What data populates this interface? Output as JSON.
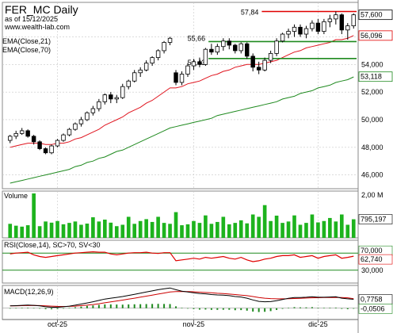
{
  "header": {
    "title": "FER_MC Daily",
    "asof": "as of 15/12/2025",
    "site": "www.wealth-lab.com"
  },
  "legend": {
    "ema21": "EMA(Close,21)",
    "ema70": "EMA(Close,70)"
  },
  "colors": {
    "up": "#2e8b2e",
    "down": "#000000",
    "ema21": "#e0141e",
    "ema70": "#1f8a1f",
    "grid": "#c8c8c8",
    "rsi": "#e00000",
    "macd": "#000000",
    "signal": "#cc0000",
    "vol": "#1db31d"
  },
  "chart_data": [
    {
      "type": "candlestick",
      "name": "price",
      "title": "FER_MC Daily",
      "ylim": [
        45.0,
        58.5
      ],
      "yticks": [
        "46,000",
        "48,000",
        "50,000",
        "52,000",
        "54,000",
        "56,000"
      ],
      "xticks": [
        {
          "i": 8,
          "label": "oct-25"
        },
        {
          "i": 31,
          "label": "nov-25"
        },
        {
          "i": 52,
          "label": "dic-25"
        }
      ],
      "ohlc": [
        [
          48.5,
          48.9,
          48.3,
          48.8
        ],
        [
          48.8,
          49.2,
          48.6,
          49.0
        ],
        [
          49.0,
          49.4,
          48.9,
          49.2
        ],
        [
          49.2,
          49.3,
          48.7,
          48.8
        ],
        [
          48.8,
          48.9,
          48.2,
          48.4
        ],
        [
          48.4,
          48.5,
          47.8,
          47.9
        ],
        [
          47.9,
          48.0,
          47.5,
          47.6
        ],
        [
          47.6,
          48.2,
          47.5,
          48.1
        ],
        [
          48.1,
          48.6,
          48.0,
          48.5
        ],
        [
          48.5,
          49.0,
          48.4,
          48.9
        ],
        [
          48.9,
          49.4,
          48.8,
          49.3
        ],
        [
          49.3,
          49.8,
          49.2,
          49.7
        ],
        [
          49.7,
          50.2,
          49.5,
          50.0
        ],
        [
          50.0,
          50.6,
          49.9,
          50.5
        ],
        [
          50.5,
          51.0,
          50.3,
          50.8
        ],
        [
          50.8,
          51.5,
          50.6,
          51.3
        ],
        [
          51.3,
          51.9,
          51.1,
          51.8
        ],
        [
          51.8,
          52.0,
          51.2,
          51.5
        ],
        [
          51.5,
          51.8,
          51.2,
          51.6
        ],
        [
          51.6,
          52.6,
          51.5,
          52.4
        ],
        [
          52.4,
          52.9,
          52.2,
          52.8
        ],
        [
          52.8,
          53.6,
          52.7,
          53.4
        ],
        [
          53.4,
          53.8,
          53.1,
          53.6
        ],
        [
          53.6,
          54.3,
          53.5,
          54.1
        ],
        [
          54.1,
          54.6,
          53.9,
          54.5
        ],
        [
          54.5,
          55.1,
          54.3,
          55.0
        ],
        [
          55.0,
          55.7,
          54.8,
          55.6
        ],
        [
          55.6,
          56.0,
          55.4,
          55.9
        ],
        [
          53.4,
          53.6,
          52.5,
          52.7
        ],
        [
          52.7,
          53.5,
          52.5,
          53.3
        ],
        [
          53.3,
          54.1,
          53.1,
          53.9
        ],
        [
          53.9,
          54.4,
          53.6,
          54.2
        ],
        [
          54.2,
          54.5,
          53.8,
          54.0
        ],
        [
          54.0,
          55.2,
          53.9,
          55.1
        ],
        [
          55.1,
          55.5,
          54.7,
          54.9
        ],
        [
          54.9,
          55.5,
          54.7,
          55.3
        ],
        [
          55.3,
          55.9,
          55.0,
          55.7
        ],
        [
          55.7,
          55.9,
          55.1,
          55.4
        ],
        [
          55.4,
          55.5,
          54.8,
          55.0
        ],
        [
          55.0,
          55.6,
          54.8,
          55.5
        ],
        [
          55.5,
          55.6,
          54.4,
          54.6
        ],
        [
          54.6,
          54.8,
          53.5,
          53.8
        ],
        [
          53.8,
          54.2,
          53.3,
          53.6
        ],
        [
          53.6,
          54.5,
          53.5,
          54.3
        ],
        [
          54.3,
          55.0,
          54.1,
          54.8
        ],
        [
          54.8,
          55.9,
          54.6,
          55.7
        ],
        [
          55.7,
          56.3,
          55.6,
          56.2
        ],
        [
          56.2,
          56.6,
          55.9,
          56.4
        ],
        [
          56.4,
          56.9,
          56.0,
          56.7
        ],
        [
          56.7,
          56.9,
          56.0,
          56.2
        ],
        [
          56.2,
          56.8,
          55.9,
          56.6
        ],
        [
          56.6,
          57.2,
          56.4,
          57.0
        ],
        [
          57.0,
          57.3,
          56.2,
          56.4
        ],
        [
          56.4,
          57.3,
          56.2,
          57.1
        ],
        [
          57.1,
          57.6,
          56.7,
          57.3
        ],
        [
          57.3,
          57.84,
          56.9,
          57.6
        ],
        [
          57.6,
          57.7,
          56.2,
          56.5
        ],
        [
          56.5,
          57.0,
          55.8,
          56.8
        ],
        [
          56.8,
          57.7,
          56.6,
          57.6
        ]
      ],
      "ema21": [
        48.0,
        48.1,
        48.2,
        48.3,
        48.3,
        48.3,
        48.2,
        48.2,
        48.3,
        48.3,
        48.4,
        48.6,
        48.7,
        48.9,
        49.1,
        49.3,
        49.6,
        49.8,
        50.0,
        50.2,
        50.5,
        50.7,
        50.9,
        51.2,
        51.4,
        51.7,
        52.0,
        52.3,
        52.3,
        52.4,
        52.6,
        52.7,
        52.8,
        53.0,
        53.2,
        53.3,
        53.5,
        53.6,
        53.8,
        53.9,
        54.0,
        54.0,
        54.0,
        54.1,
        54.2,
        54.3,
        54.5,
        54.7,
        54.9,
        55.0,
        55.2,
        55.3,
        55.4,
        55.5,
        55.6,
        55.8,
        55.8,
        55.9,
        56.1
      ],
      "ema70": [
        45.4,
        45.5,
        45.6,
        45.7,
        45.8,
        45.9,
        46.0,
        46.1,
        46.2,
        46.3,
        46.4,
        46.6,
        46.7,
        46.9,
        47.0,
        47.2,
        47.3,
        47.5,
        47.7,
        47.8,
        48.0,
        48.2,
        48.4,
        48.6,
        48.8,
        49.0,
        49.2,
        49.4,
        49.5,
        49.6,
        49.7,
        49.8,
        49.9,
        50.0,
        50.1,
        50.3,
        50.4,
        50.5,
        50.6,
        50.7,
        50.8,
        50.9,
        51.0,
        51.1,
        51.2,
        51.3,
        51.5,
        51.6,
        51.7,
        51.9,
        52.0,
        52.1,
        52.3,
        52.4,
        52.5,
        52.7,
        52.8,
        52.9,
        53.1
      ],
      "levels": [
        {
          "y": 57.84,
          "label": "57,84",
          "from": 43,
          "color": "#e00000"
        },
        {
          "y": 55.66,
          "label": "55,66",
          "from": 34,
          "color": "#1f8a1f"
        },
        {
          "y": 54.43,
          "label": "54,43",
          "from": 34,
          "color": "#1f8a1f"
        }
      ],
      "last_labels": [
        {
          "value": "57,600",
          "y": 57.6,
          "bg": "#ffffff",
          "fg": "#000000"
        },
        {
          "value": "56,096",
          "y": 56.096,
          "bg": "#ffffff",
          "fg": "#e00000"
        },
        {
          "value": "53,118",
          "y": 53.118,
          "bg": "#ffffff",
          "fg": "#1f8a1f"
        }
      ]
    },
    {
      "type": "bar",
      "name": "volume",
      "title": "Volume",
      "ylim": [
        0,
        2000000
      ],
      "yticks": [
        {
          "v": 2000000,
          "label": "2,00 M"
        }
      ],
      "last_label": "795,197",
      "values": [
        600000,
        520000,
        480000,
        540000,
        1900000,
        500000,
        700000,
        650000,
        720000,
        580000,
        640000,
        700000,
        560000,
        610000,
        880000,
        700000,
        780000,
        650000,
        500000,
        560000,
        900000,
        600000,
        720000,
        800000,
        680000,
        900000,
        640000,
        600000,
        1100000,
        540000,
        580000,
        720000,
        640000,
        960000,
        600000,
        680000,
        900000,
        580000,
        640000,
        750000,
        620000,
        1000000,
        900000,
        1400000,
        720000,
        950000,
        640000,
        700000,
        960000,
        560000,
        640000,
        1000000,
        660000,
        720000,
        850000,
        700000,
        1000000,
        560000,
        795197
      ]
    },
    {
      "type": "line",
      "name": "rsi",
      "title": "RSI(Close,14), SC>70, SV<30",
      "ylim": [
        0,
        100
      ],
      "levels": [
        {
          "v": 70,
          "label": ""
        },
        {
          "v": 30,
          "label": "30,000"
        }
      ],
      "last_labels": [
        {
          "value": "70,000",
          "v": 70
        },
        {
          "value": "62,740",
          "v": 62.74
        }
      ],
      "values": [
        68,
        70,
        71,
        72,
        66,
        62,
        60,
        62,
        64,
        66,
        68,
        70,
        71,
        72,
        73,
        72,
        72,
        68,
        66,
        68,
        70,
        71,
        71,
        72,
        70,
        69,
        71,
        71,
        52,
        54,
        56,
        58,
        56,
        60,
        58,
        60,
        62,
        58,
        56,
        60,
        54,
        50,
        52,
        56,
        58,
        62,
        64,
        64,
        66,
        60,
        62,
        64,
        58,
        62,
        64,
        66,
        58,
        60,
        62.74
      ]
    },
    {
      "type": "line",
      "name": "macd",
      "title": "MACD(12,26,9)",
      "ylim": [
        -1.0,
        2.0
      ],
      "last_labels": [
        {
          "value": "0,7758",
          "v": 0.7758
        },
        {
          "value": "-0,0506",
          "v": -0.0506
        }
      ],
      "macd": [
        0.2,
        0.22,
        0.25,
        0.27,
        0.25,
        0.2,
        0.12,
        0.08,
        0.08,
        0.12,
        0.18,
        0.26,
        0.36,
        0.46,
        0.56,
        0.68,
        0.8,
        0.88,
        0.95,
        1.02,
        1.12,
        1.22,
        1.32,
        1.42,
        1.52,
        1.62,
        1.7,
        1.78,
        1.62,
        1.5,
        1.42,
        1.36,
        1.28,
        1.26,
        1.2,
        1.16,
        1.14,
        1.1,
        1.02,
        0.98,
        0.88,
        0.72,
        0.6,
        0.56,
        0.58,
        0.66,
        0.76,
        0.86,
        0.94,
        0.94,
        0.96,
        1.0,
        0.96,
        0.96,
        0.98,
        1.0,
        0.88,
        0.82,
        0.78
      ],
      "signal": [
        0.2,
        0.21,
        0.22,
        0.23,
        0.24,
        0.23,
        0.21,
        0.18,
        0.16,
        0.15,
        0.16,
        0.18,
        0.22,
        0.26,
        0.32,
        0.39,
        0.47,
        0.55,
        0.63,
        0.71,
        0.79,
        0.88,
        0.97,
        1.06,
        1.15,
        1.24,
        1.33,
        1.42,
        1.46,
        1.47,
        1.46,
        1.44,
        1.41,
        1.38,
        1.35,
        1.31,
        1.28,
        1.24,
        1.2,
        1.15,
        1.1,
        1.02,
        0.94,
        0.88,
        0.84,
        0.82,
        0.82,
        0.83,
        0.85,
        0.87,
        0.89,
        0.91,
        0.92,
        0.93,
        0.94,
        0.95,
        0.94,
        0.91,
        0.83
      ],
      "hist": [
        0.0,
        0.01,
        0.03,
        0.04,
        0.01,
        -0.03,
        -0.09,
        -0.1,
        -0.08,
        -0.03,
        0.02,
        0.08,
        0.14,
        0.2,
        0.24,
        0.29,
        0.33,
        0.33,
        0.32,
        0.31,
        0.33,
        0.34,
        0.35,
        0.36,
        0.37,
        0.38,
        0.37,
        0.36,
        0.16,
        0.03,
        -0.04,
        -0.08,
        -0.13,
        -0.12,
        -0.15,
        -0.15,
        -0.14,
        -0.14,
        -0.18,
        -0.17,
        -0.22,
        -0.3,
        -0.34,
        -0.32,
        -0.26,
        -0.16,
        -0.06,
        0.03,
        0.09,
        0.07,
        0.07,
        0.09,
        0.04,
        0.03,
        0.04,
        0.05,
        -0.06,
        -0.09,
        -0.05
      ]
    }
  ]
}
